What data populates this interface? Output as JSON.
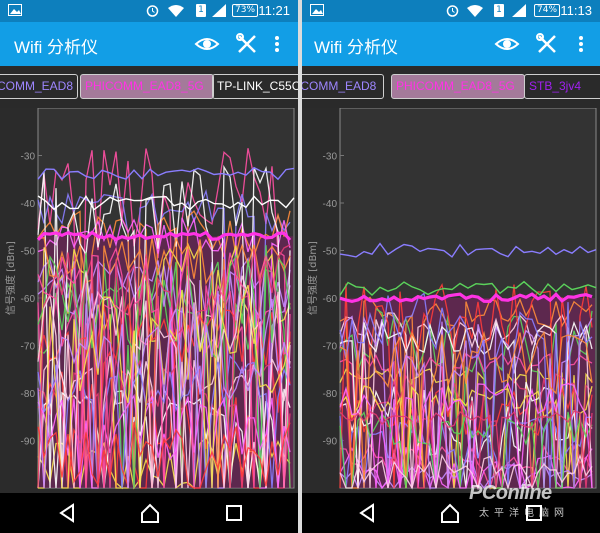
{
  "screens": [
    {
      "status": {
        "time": "11:21",
        "battery": "73%",
        "sim": "1"
      },
      "toolbar": {
        "title": "Wifi 分析仪"
      },
      "tabs": [
        {
          "label": "COMM_EAD8",
          "color": "#9e86ff"
        },
        {
          "label": "PHICOMM_EAD8_5G",
          "color": "#ff33e5"
        },
        {
          "label": "TP-LINK_C55C",
          "color": "#ffffff"
        }
      ],
      "chart": {
        "y_ticks": [
          "-30",
          "-40",
          "-50",
          "-60",
          "-70",
          "-80",
          "-90"
        ],
        "ylabel": "信号强度 [dBm]",
        "ylim": [
          -100,
          -20
        ]
      }
    },
    {
      "status": {
        "time": "11:13",
        "battery": "74%",
        "sim": "1"
      },
      "toolbar": {
        "title": "Wifi 分析仪"
      },
      "tabs": [
        {
          "label": "ICOMM_EAD8",
          "color": "#9e86ff"
        },
        {
          "label": "PHICOMM_EAD8_5G",
          "color": "#ff33e5"
        },
        {
          "label": "STB_3jv4",
          "color": "#a020f0"
        }
      ],
      "chart": {
        "y_ticks": [
          "-30",
          "-40",
          "-50",
          "-60",
          "-70",
          "-80",
          "-90"
        ],
        "ylabel": "信号强度 [dBm]",
        "ylim": [
          -100,
          -20
        ]
      }
    }
  ],
  "watermark": {
    "main": "PConline",
    "sub": "太平洋电脑网"
  },
  "icons": {
    "eye": "eye-icon",
    "tools": "tools-icon",
    "menu": "overflow-menu-icon",
    "back": "back-icon",
    "home": "home-icon",
    "recents": "recents-icon"
  },
  "colors": {
    "status_bar": "#0d7fbd",
    "toolbar": "#129ee6",
    "chart_bg": "#333333",
    "highlight_line": "#ff33e5",
    "fill": "#7a2160"
  }
}
